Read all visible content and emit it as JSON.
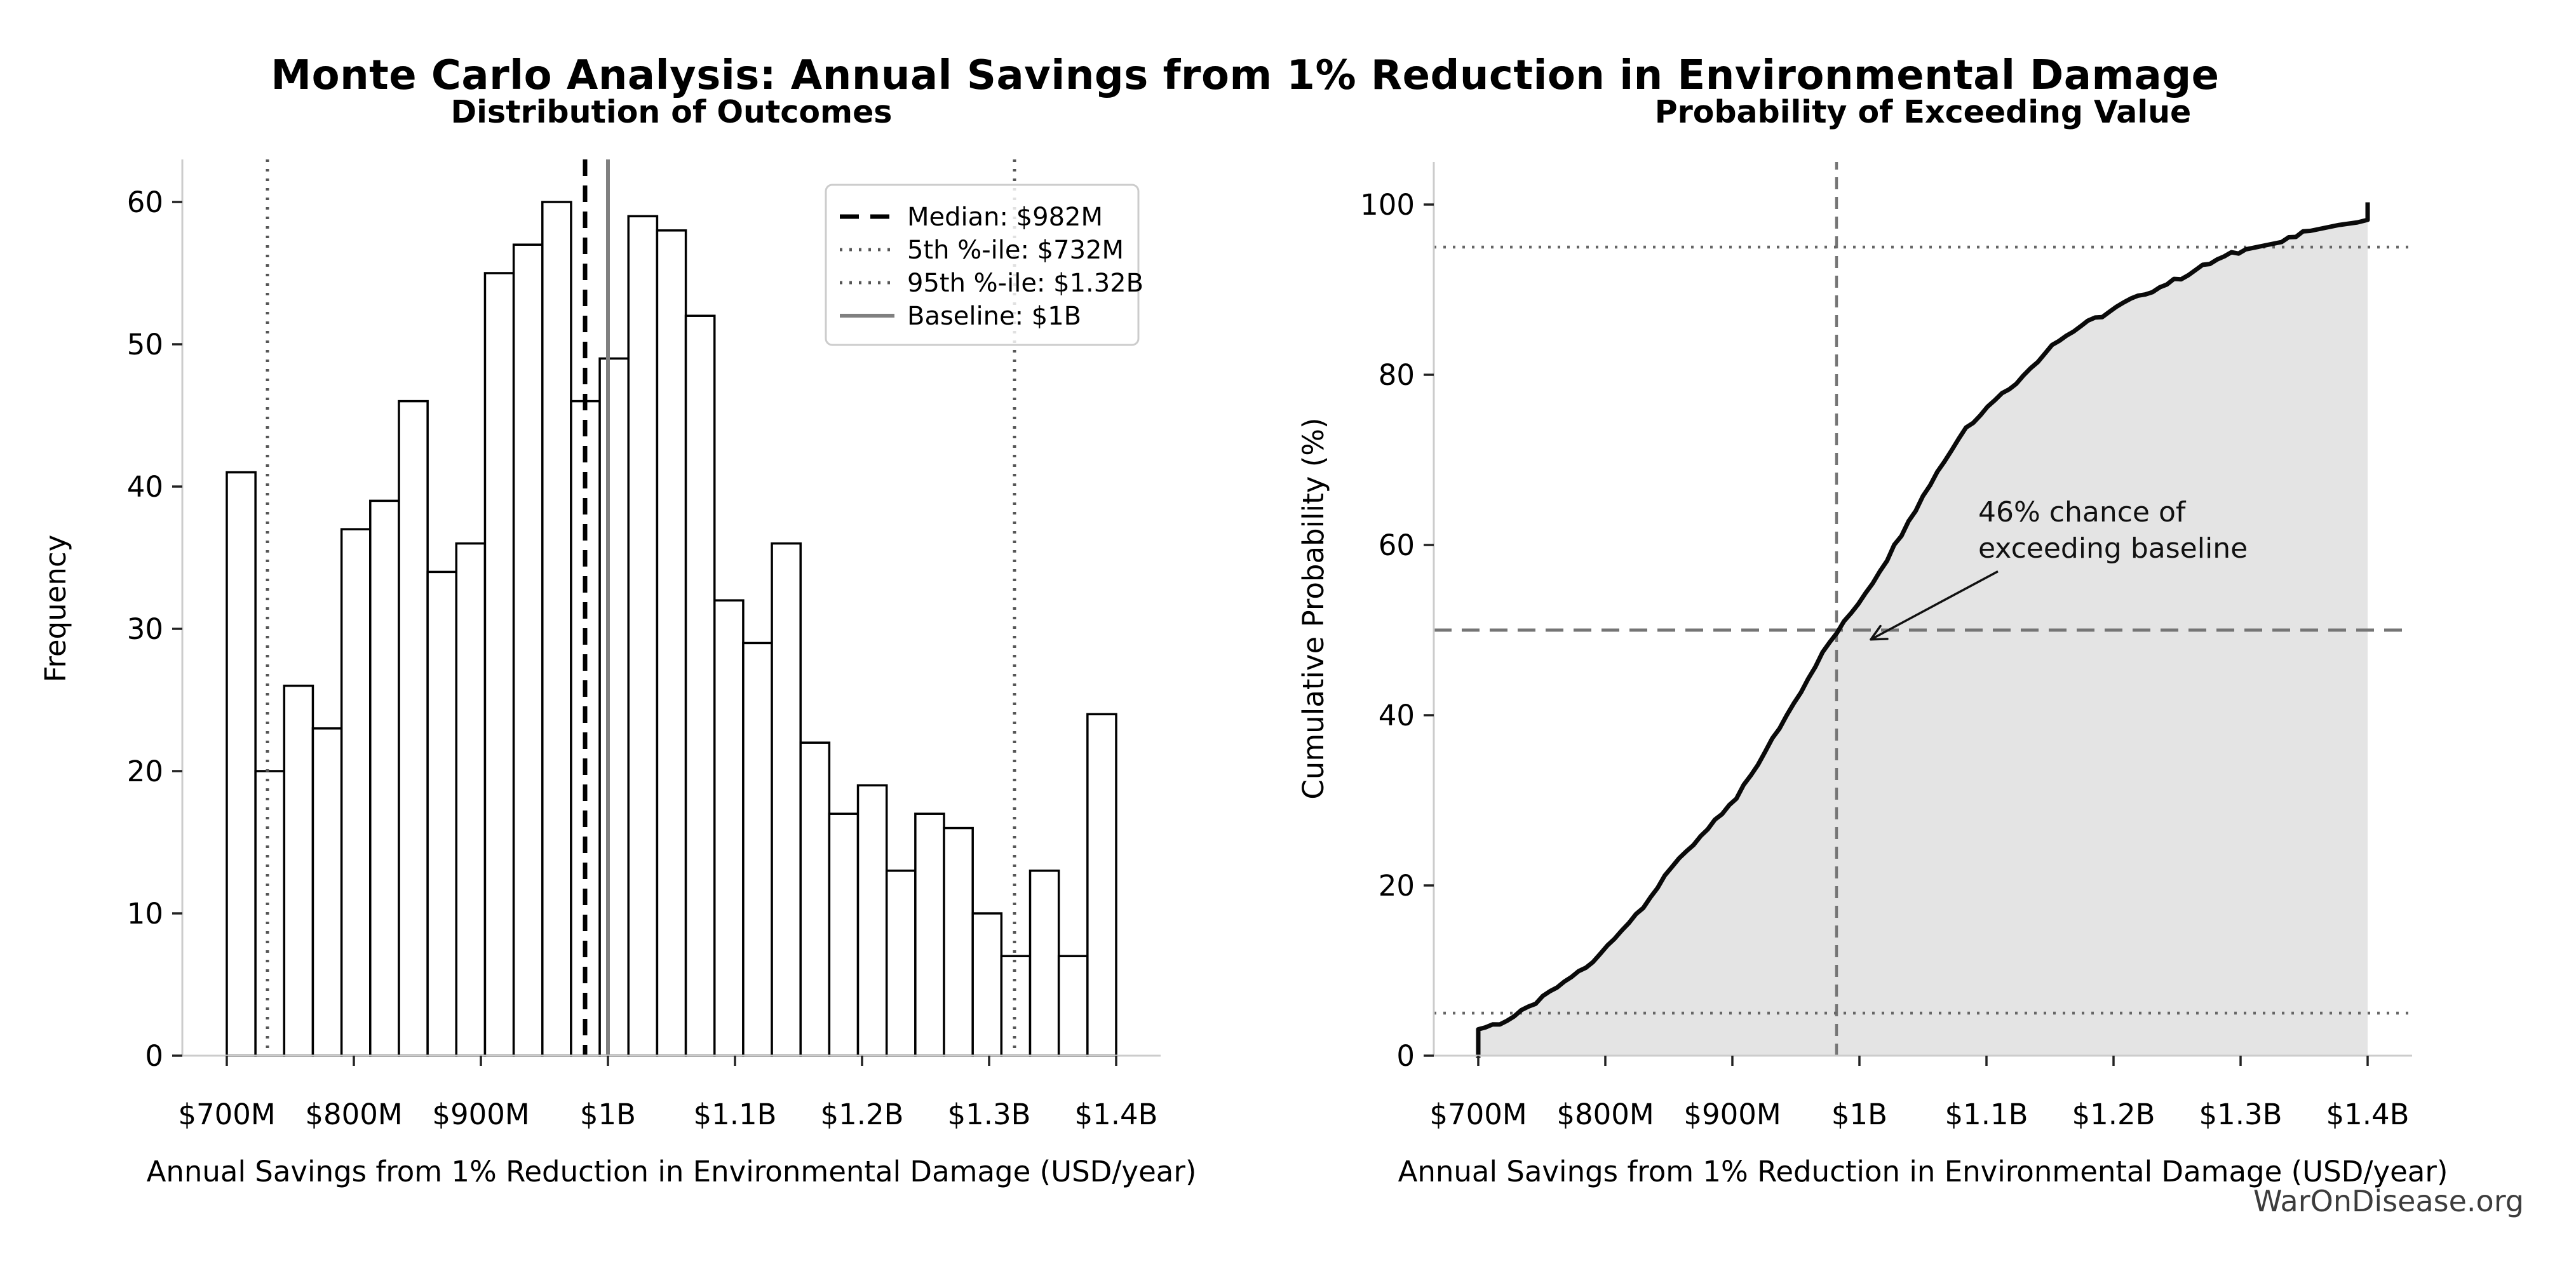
{
  "page": {
    "title": "Monte Carlo Analysis: Annual Savings from 1% Reduction in Environmental Damage",
    "watermark": "WarOnDisease.org"
  },
  "colors": {
    "bar_fill": "#ffffff",
    "bar_edge": "#000000",
    "median_line": "#000000",
    "percentile_line": "#555555",
    "baseline_line": "#808080",
    "cdf_line": "#0a0a0a",
    "cdf_fill": "#e4e4e4",
    "ref_dash_gray": "#757575",
    "dotted_gray": "#666666",
    "spine": "#cccccc",
    "tick": "#222222",
    "annotation": "#111111",
    "watermark": "#3c3c3c"
  },
  "chart_data": [
    {
      "type": "bar",
      "title": "Distribution of Outcomes",
      "xlabel": "Annual Savings from 1% Reduction in Environmental Damage (USD/year)",
      "ylabel": "Frequency",
      "bin_start_musd": 700,
      "bin_width_musd": 22.5806,
      "values": [
        41,
        20,
        26,
        23,
        37,
        39,
        46,
        34,
        36,
        55,
        57,
        60,
        46,
        49,
        59,
        58,
        52,
        32,
        29,
        36,
        22,
        17,
        19,
        13,
        17,
        16,
        10,
        7,
        13,
        7,
        24
      ],
      "total_samples": 1000,
      "x_tick_values": [
        700,
        800,
        900,
        1000,
        1100,
        1200,
        1300,
        1400
      ],
      "x_tick_labels": [
        "$700M",
        "$800M",
        "$900M",
        "$1B",
        "$1.1B",
        "$1.2B",
        "$1.3B",
        "$1.4B"
      ],
      "y_ticks": [
        0,
        10,
        20,
        30,
        40,
        50,
        60
      ],
      "xlim_musd": [
        665,
        1435
      ],
      "ylim": [
        0,
        63
      ],
      "grid": false,
      "legend_position": "upper right",
      "ref_lines": [
        {
          "name": "median",
          "x_musd": 982,
          "style": "dashed",
          "label": "Median: $982M"
        },
        {
          "name": "p5",
          "x_musd": 732,
          "style": "dotted",
          "label": "5th %-ile: $732M"
        },
        {
          "name": "p95",
          "x_musd": 1320,
          "style": "dotted",
          "label": "95th %-ile: $1.32B"
        },
        {
          "name": "baseline",
          "x_musd": 1000,
          "style": "solid",
          "label": "Baseline: $1B"
        }
      ]
    },
    {
      "type": "line",
      "title": "Probability of Exceeding Value",
      "xlabel": "Annual Savings from 1% Reduction in Environmental Damage (USD/year)",
      "ylabel": "Cumulative Probability (%)",
      "x_musd": [
        700,
        700,
        722.6,
        745.2,
        767.7,
        790.3,
        812.9,
        835.5,
        858.1,
        880.6,
        903.2,
        925.8,
        948.4,
        971,
        993.5,
        1016.1,
        1038.7,
        1061.3,
        1083.9,
        1106.5,
        1129,
        1151.6,
        1174.2,
        1196.8,
        1219.4,
        1241.9,
        1264.5,
        1287.1,
        1309.7,
        1332.3,
        1354.8,
        1377.4,
        1392,
        1400,
        1400
      ],
      "y_pct": [
        0,
        3.1,
        4.1,
        6.1,
        8.7,
        11,
        14.7,
        18.6,
        23.2,
        26.6,
        30.2,
        35.7,
        41.4,
        47.4,
        52,
        56.9,
        62.8,
        68.6,
        73.8,
        77,
        79.9,
        83.5,
        85.7,
        87.4,
        89.3,
        90.6,
        92.3,
        93.9,
        94.9,
        95.6,
        96.9,
        97.6,
        97.9,
        98.2,
        100
      ],
      "fill_under_curve": true,
      "x_tick_values": [
        700,
        800,
        900,
        1000,
        1100,
        1200,
        1300,
        1400
      ],
      "x_tick_labels": [
        "$700M",
        "$800M",
        "$900M",
        "$1B",
        "$1.1B",
        "$1.2B",
        "$1.3B",
        "$1.4B"
      ],
      "y_ticks": [
        0,
        20,
        40,
        60,
        80,
        100
      ],
      "xlim_musd": [
        665,
        1435
      ],
      "ylim": [
        0,
        105
      ],
      "grid": false,
      "h_ref_lines": [
        {
          "name": "p5",
          "y_pct": 5,
          "style": "dotted"
        },
        {
          "name": "fifty",
          "y_pct": 50,
          "style": "dashed"
        },
        {
          "name": "p95",
          "y_pct": 95,
          "style": "dotted"
        }
      ],
      "v_ref_lines": [
        {
          "name": "median",
          "x_musd": 982,
          "style": "dashed"
        }
      ],
      "annotation": {
        "line1": "46% chance of",
        "line2": "exceeding baseline",
        "arrow_tip_value": {
          "x_musd": 1009,
          "y_pct": 48.9
        },
        "arrow_tail_value": {
          "x_musd": 1109,
          "y_pct": 56.9
        }
      }
    }
  ]
}
